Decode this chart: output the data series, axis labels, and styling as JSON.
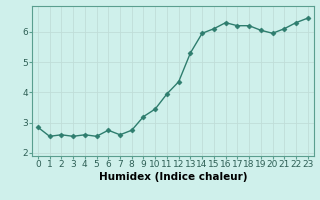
{
  "xlabel": "Humidex (Indice chaleur)",
  "x": [
    0,
    1,
    2,
    3,
    4,
    5,
    6,
    7,
    8,
    9,
    10,
    11,
    12,
    13,
    14,
    15,
    16,
    17,
    18,
    19,
    20,
    21,
    22,
    23
  ],
  "y": [
    2.85,
    2.55,
    2.6,
    2.55,
    2.6,
    2.55,
    2.75,
    2.6,
    2.75,
    3.2,
    3.45,
    3.95,
    4.35,
    5.3,
    5.95,
    6.1,
    6.3,
    6.2,
    6.2,
    6.05,
    5.95,
    6.1,
    6.3,
    6.45
  ],
  "line_color": "#2e7d6e",
  "marker": "D",
  "marker_size": 2.5,
  "bg_color": "#cff0eb",
  "grid_color": "#c0ddd8",
  "xlim": [
    -0.5,
    23.5
  ],
  "ylim": [
    1.9,
    6.85
  ],
  "yticks": [
    2,
    3,
    4,
    5,
    6
  ],
  "xticks": [
    0,
    1,
    2,
    3,
    4,
    5,
    6,
    7,
    8,
    9,
    10,
    11,
    12,
    13,
    14,
    15,
    16,
    17,
    18,
    19,
    20,
    21,
    22,
    23
  ],
  "xlabel_fontsize": 7.5,
  "tick_fontsize": 6.5,
  "line_width": 1.0,
  "spine_color": "#5a9e8f"
}
